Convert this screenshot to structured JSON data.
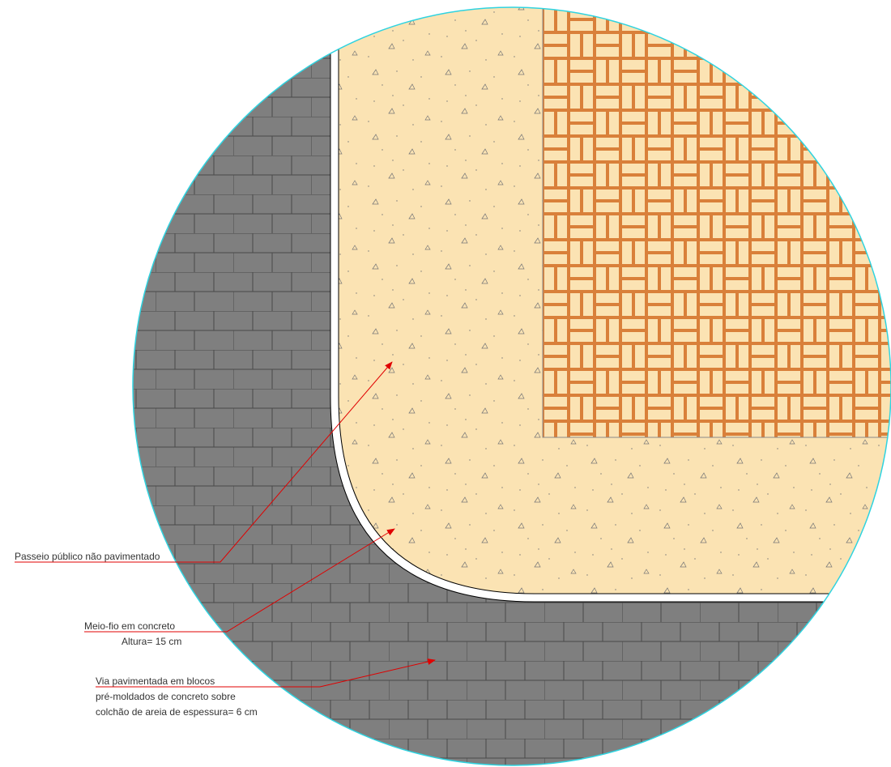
{
  "labels": {
    "sidewalk": "Passeio público não pavimentado",
    "curb": [
      "Meio-fio em concreto",
      "Altura= 15 cm"
    ],
    "road": [
      "Via pavimentada em blocos",
      "pré-moldados de concreto sobre",
      "colchão de areia de espessura= 6 cm"
    ]
  }
}
